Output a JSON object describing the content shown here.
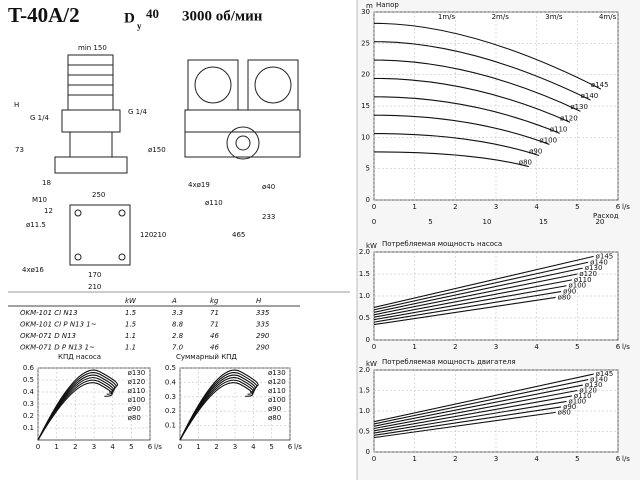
{
  "title": "T-40A/2",
  "dn": "D",
  "dn_sub": "y",
  "dn_value": "40",
  "speed": "3000 об/мин",
  "drawing_labels": [
    "min 150",
    "H",
    "G 1/4",
    "G 1/4",
    "73",
    "ø150",
    "18",
    "250",
    "M10",
    "12",
    "4xø19",
    "ø40",
    "ø110",
    "233",
    "465",
    "ø11.5",
    "120",
    "210",
    "4xø16",
    "170",
    "210"
  ],
  "table": {
    "header": [
      "kW",
      "A",
      "kg",
      "H"
    ],
    "rows": [
      [
        "OKM-101 CI N13",
        "1.5",
        "3.3",
        "71",
        "335"
      ],
      [
        "OKM-101 CI P N13 1~",
        "1.5",
        "8.8",
        "71",
        "335"
      ],
      [
        "OKM-071 D N13",
        "1.1",
        "2.8",
        "46",
        "290"
      ],
      [
        "OKM-071 D P N13 1~",
        "1.1",
        "7.0",
        "46",
        "290"
      ]
    ]
  },
  "charts": [
    {
      "title": "КПД насоса",
      "yticks": [
        "0.1",
        "0.2",
        "0.3",
        "0.4",
        "0.5",
        "0.6"
      ],
      "xticks": [
        "0",
        "1",
        "2",
        "3",
        "4",
        "5",
        "6"
      ],
      "x_unit": "l/s",
      "curve_labels": [
        "ø130",
        "ø120",
        "ø110",
        "ø100",
        "ø90",
        "ø80"
      ]
    },
    {
      "title": "Суммарный КПД",
      "yticks": [
        "0.1",
        "0.2",
        "0.3",
        "0.4",
        "0.5"
      ],
      "xticks": [
        "0",
        "1",
        "2",
        "3",
        "4",
        "5",
        "6"
      ],
      "x_unit": "l/s",
      "curve_labels": [
        "ø130",
        "ø120",
        "ø110",
        "ø100",
        "ø90",
        "ø80"
      ]
    },
    {
      "title": "Напор",
      "y_unit": "m",
      "yticks": [
        "0",
        "5",
        "10",
        "15",
        "20",
        "25",
        "30"
      ],
      "xticks": [
        "0",
        "1",
        "2",
        "3",
        "4",
        "5",
        "6"
      ],
      "x_unit": "l/s",
      "x2ticks": [
        "0",
        "5",
        "10",
        "15",
        "20"
      ],
      "x2_label": "Расход",
      "velocity_labels": [
        "1m/s",
        "2m/s",
        "3m/s",
        "4m/s"
      ],
      "curve_labels": [
        "ø145",
        "ø140",
        "ø130",
        "ø120",
        "ø110",
        "ø100",
        "ø90",
        "ø80"
      ]
    },
    {
      "title": "Потребляемая мощность насоса",
      "y_unit": "kW",
      "yticks": [
        "0",
        "0.5",
        "1.0",
        "1.5",
        "2.0"
      ],
      "xticks": [
        "0",
        "1",
        "2",
        "3",
        "4",
        "5",
        "6"
      ],
      "x_unit": "l/s",
      "curve_labels": [
        "ø145",
        "ø140",
        "ø130",
        "ø120",
        "ø110",
        "ø100",
        "ø90",
        "ø80"
      ]
    },
    {
      "title": "Потребляемая мощность двигателя",
      "y_unit": "kW",
      "yticks": [
        "0",
        "0.5",
        "1.0",
        "1.5",
        "2.0"
      ],
      "xticks": [
        "0",
        "1",
        "2",
        "3",
        "4",
        "5",
        "6"
      ],
      "x_unit": "l/s",
      "curve_labels": [
        "ø145",
        "ø140",
        "ø130",
        "ø120",
        "ø110",
        "ø100",
        "ø90",
        "ø80"
      ]
    }
  ]
}
